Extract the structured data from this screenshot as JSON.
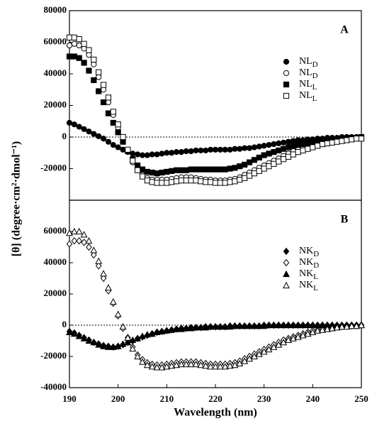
{
  "chart_data": [
    {
      "type": "scatter",
      "label": "A",
      "zero_line": true,
      "ylabel": "[θ] (degree·cm²·dmol⁻¹)",
      "xlim": [
        190,
        250
      ],
      "ylim": [
        -40000,
        80000
      ],
      "yticks": [
        -20000,
        0,
        20000,
        40000,
        60000,
        80000
      ],
      "x": [
        190,
        191,
        192,
        193,
        194,
        195,
        196,
        197,
        198,
        199,
        200,
        201,
        202,
        203,
        204,
        205,
        206,
        207,
        208,
        209,
        210,
        211,
        212,
        213,
        214,
        215,
        216,
        217,
        218,
        219,
        220,
        221,
        222,
        223,
        224,
        225,
        226,
        227,
        228,
        229,
        230,
        231,
        232,
        233,
        234,
        235,
        236,
        237,
        238,
        239,
        240,
        241,
        242,
        243,
        244,
        245,
        246,
        247,
        248,
        249,
        250
      ],
      "series": [
        {
          "name": "NLD",
          "marker": "circle",
          "filled": true,
          "color": "#000000",
          "values": [
            9000,
            8000,
            6500,
            5000,
            3500,
            2000,
            500,
            -1000,
            -3000,
            -5000,
            -6500,
            -8000,
            -9500,
            -10500,
            -11000,
            -11500,
            -11500,
            -11000,
            -11000,
            -10500,
            -10000,
            -10000,
            -9500,
            -9500,
            -9000,
            -9000,
            -8500,
            -8500,
            -8500,
            -8000,
            -8000,
            -8000,
            -8000,
            -8000,
            -7500,
            -7500,
            -7000,
            -7000,
            -6500,
            -6000,
            -5500,
            -5000,
            -4500,
            -4000,
            -3500,
            -3000,
            -2500,
            -2000,
            -2000,
            -1500,
            -1500,
            -1000,
            -1000,
            -500,
            -500,
            -500,
            0,
            0,
            0,
            0,
            0
          ]
        },
        {
          "name": "NLD",
          "marker": "circle",
          "filled": false,
          "color": "#000000",
          "values": [
            58000,
            59000,
            58000,
            56000,
            52000,
            46000,
            38000,
            30000,
            22000,
            14000,
            6000,
            -2000,
            -9000,
            -16000,
            -21000,
            -24000,
            -26000,
            -27000,
            -27000,
            -27000,
            -27000,
            -26500,
            -26000,
            -25500,
            -25500,
            -25500,
            -26000,
            -26500,
            -27000,
            -27000,
            -27500,
            -27500,
            -27500,
            -27000,
            -26500,
            -25500,
            -24000,
            -22500,
            -21000,
            -19500,
            -18000,
            -16500,
            -15000,
            -13500,
            -12000,
            -10500,
            -9000,
            -8000,
            -7000,
            -6000,
            -5000,
            -4000,
            -3500,
            -3000,
            -2500,
            -2000,
            -1500,
            -1000,
            -1000,
            -500,
            -500
          ]
        },
        {
          "name": "NLL",
          "marker": "square",
          "filled": true,
          "color": "#000000",
          "values": [
            51000,
            51000,
            50000,
            47000,
            42000,
            36000,
            29000,
            22000,
            15000,
            9000,
            3000,
            -3000,
            -9000,
            -14000,
            -18000,
            -20500,
            -22000,
            -22500,
            -23000,
            -22500,
            -22000,
            -21500,
            -21000,
            -21000,
            -21000,
            -20500,
            -20500,
            -20500,
            -20500,
            -20500,
            -20500,
            -20500,
            -20500,
            -20000,
            -19500,
            -18500,
            -17500,
            -16000,
            -14500,
            -13000,
            -11500,
            -10500,
            -9500,
            -8500,
            -7500,
            -6500,
            -5500,
            -5000,
            -4500,
            -4000,
            -3500,
            -3000,
            -2500,
            -2000,
            -1500,
            -1500,
            -1000,
            -1000,
            -500,
            -500,
            0
          ]
        },
        {
          "name": "NLL",
          "marker": "square",
          "filled": false,
          "color": "#000000",
          "values": [
            63000,
            63000,
            62000,
            59000,
            55000,
            49000,
            41000,
            33000,
            25000,
            16000,
            8000,
            0,
            -8000,
            -15000,
            -21000,
            -25000,
            -27500,
            -28500,
            -29000,
            -29000,
            -29000,
            -28500,
            -28000,
            -27500,
            -27500,
            -27500,
            -27500,
            -28000,
            -28500,
            -28500,
            -29000,
            -29000,
            -29000,
            -28500,
            -28000,
            -27000,
            -26000,
            -24500,
            -23000,
            -21500,
            -20000,
            -18500,
            -17000,
            -15500,
            -14000,
            -12500,
            -11000,
            -9500,
            -8500,
            -7500,
            -6500,
            -5500,
            -4500,
            -4000,
            -3500,
            -3000,
            -2500,
            -2000,
            -1500,
            -1000,
            -1000
          ]
        }
      ]
    },
    {
      "type": "scatter",
      "label": "B",
      "zero_line": true,
      "xlabel": "Wavelength (nm)",
      "xlim": [
        190,
        250
      ],
      "ylim": [
        -40000,
        80000
      ],
      "xticks": [
        190,
        200,
        210,
        220,
        230,
        240,
        250
      ],
      "yticks": [
        -40000,
        -20000,
        0,
        20000,
        40000,
        60000
      ],
      "x": [
        190,
        191,
        192,
        193,
        194,
        195,
        196,
        197,
        198,
        199,
        200,
        201,
        202,
        203,
        204,
        205,
        206,
        207,
        208,
        209,
        210,
        211,
        212,
        213,
        214,
        215,
        216,
        217,
        218,
        219,
        220,
        221,
        222,
        223,
        224,
        225,
        226,
        227,
        228,
        229,
        230,
        231,
        232,
        233,
        234,
        235,
        236,
        237,
        238,
        239,
        240,
        241,
        242,
        243,
        244,
        245,
        246,
        247,
        248,
        249,
        250
      ],
      "series": [
        {
          "name": "NKD",
          "marker": "diamond",
          "filled": true,
          "color": "#000000",
          "values": [
            -4000,
            -5000,
            -6500,
            -8000,
            -9500,
            -11000,
            -12000,
            -13000,
            -13500,
            -14000,
            -13500,
            -12500,
            -11000,
            -10000,
            -8500,
            -7500,
            -6500,
            -5500,
            -4500,
            -4000,
            -3500,
            -3000,
            -2500,
            -2000,
            -2000,
            -1500,
            -1500,
            -1500,
            -1000,
            -1000,
            -1000,
            -1000,
            -1000,
            -500,
            -500,
            -500,
            -500,
            -500,
            -500,
            -500,
            0,
            0,
            0,
            0,
            0,
            0,
            0,
            0,
            0,
            0,
            0,
            0,
            0,
            0,
            0,
            0,
            0,
            0,
            0,
            0,
            0
          ]
        },
        {
          "name": "NKD",
          "marker": "diamond",
          "filled": false,
          "color": "#000000",
          "values": [
            52000,
            54000,
            54000,
            53000,
            50000,
            45000,
            38000,
            30000,
            22000,
            14000,
            6000,
            -2000,
            -8000,
            -14000,
            -19000,
            -22000,
            -24000,
            -25000,
            -25500,
            -25500,
            -25000,
            -24500,
            -24000,
            -23500,
            -23500,
            -23500,
            -23500,
            -24000,
            -24500,
            -25000,
            -25000,
            -25000,
            -25000,
            -24500,
            -24000,
            -23000,
            -21500,
            -20000,
            -18500,
            -17000,
            -15500,
            -14000,
            -12500,
            -11000,
            -9500,
            -8500,
            -7500,
            -6500,
            -5500,
            -4500,
            -3500,
            -3000,
            -2500,
            -2000,
            -1500,
            -1000,
            -1000,
            -500,
            -500,
            -500,
            0
          ]
        },
        {
          "name": "NKL",
          "marker": "triangle",
          "filled": true,
          "color": "#000000",
          "values": [
            -4500,
            -5500,
            -7000,
            -8500,
            -10000,
            -11000,
            -12500,
            -13500,
            -14000,
            -14000,
            -13500,
            -12000,
            -11000,
            -9500,
            -8500,
            -7000,
            -6000,
            -5500,
            -4500,
            -4000,
            -3500,
            -3000,
            -2500,
            -2500,
            -2000,
            -2000,
            -1500,
            -1500,
            -1500,
            -1000,
            -1000,
            -1000,
            -1000,
            -1000,
            -500,
            -500,
            -500,
            -500,
            -500,
            -500,
            -500,
            0,
            0,
            0,
            0,
            0,
            0,
            0,
            0,
            0,
            0,
            0,
            0,
            0,
            0,
            0,
            0,
            0,
            0,
            0,
            0
          ]
        },
        {
          "name": "NKL",
          "marker": "triangle",
          "filled": false,
          "color": "#000000",
          "values": [
            59000,
            60000,
            60000,
            58000,
            54000,
            48000,
            41000,
            33000,
            24000,
            15000,
            7000,
            -1000,
            -8000,
            -15000,
            -20000,
            -23500,
            -25500,
            -26500,
            -27000,
            -27000,
            -26500,
            -26000,
            -25500,
            -25000,
            -25000,
            -25000,
            -25000,
            -25500,
            -26000,
            -26500,
            -26500,
            -26500,
            -26500,
            -26000,
            -25500,
            -24500,
            -23000,
            -21500,
            -20000,
            -18500,
            -17000,
            -15500,
            -14000,
            -12500,
            -11000,
            -9500,
            -8500,
            -7500,
            -6500,
            -5500,
            -4500,
            -3500,
            -3000,
            -2500,
            -2000,
            -1500,
            -1000,
            -1000,
            -500,
            -500,
            0
          ]
        }
      ]
    }
  ]
}
